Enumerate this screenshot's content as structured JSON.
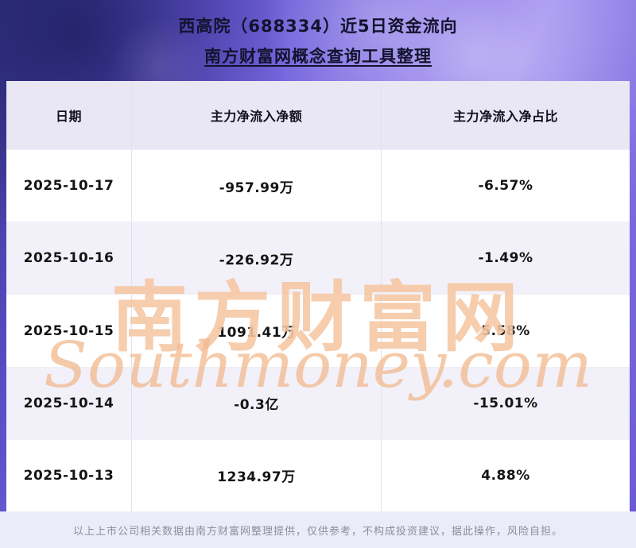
{
  "banner": {
    "title_line1": "西高院（688334）近5日资金流向",
    "title_line2": "南方财富网概念查询工具整理"
  },
  "table": {
    "columns": {
      "date": "日期",
      "amount": "主力净流入净额",
      "ratio": "主力净流入净占比"
    },
    "rows": [
      {
        "date": "2025-10-17",
        "amount": "-957.99万",
        "ratio": "-6.57%"
      },
      {
        "date": "2025-10-16",
        "amount": "-226.92万",
        "ratio": "-1.49%"
      },
      {
        "date": "2025-10-15",
        "amount": "1091.41万",
        "ratio": "5.58%"
      },
      {
        "date": "2025-10-14",
        "amount": "-0.3亿",
        "ratio": "-15.01%"
      },
      {
        "date": "2025-10-13",
        "amount": "1234.97万",
        "ratio": "4.88%"
      }
    ]
  },
  "watermark": {
    "cn": "南方财富网",
    "en": "Southmoney.com"
  },
  "footer": {
    "disclaimer": "以上上市公司相关数据由南方财富网整理提供，仅供参考，不构成投资建议，据此操作，风险自担。"
  },
  "colors": {
    "banner_gradient_main": "#6a59d2",
    "banner_gradient_dark": "#38368f",
    "title_text": "#13132e",
    "header_row_bg": "#e9e7f3",
    "alt_row_bg": "#f2f0f9",
    "watermark_orange": "#f4c199",
    "footer_bg": "#ecebf8",
    "footer_text": "#8d8d9e"
  }
}
